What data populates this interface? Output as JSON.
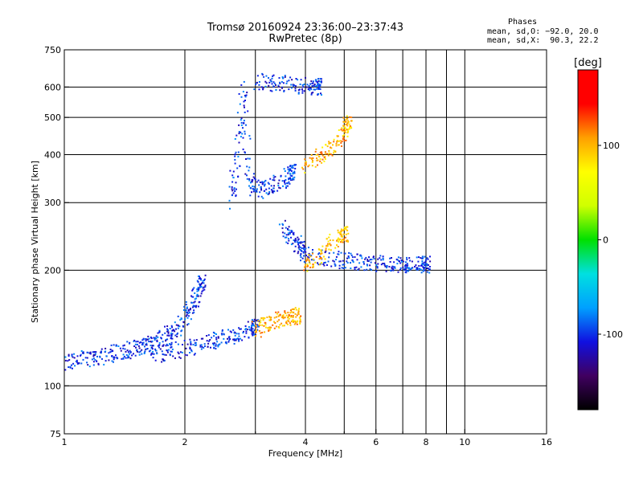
{
  "header": {
    "title": "Tromsø 20160924 23:36:00–23:37:43",
    "subtitle": "RwPretec (8p)",
    "stats_title": "Phases",
    "stats_o": "mean, sd,O: −92.0, 20.0",
    "stats_x": "mean, sd,X:  90.3, 22.2"
  },
  "chart_data": {
    "type": "scatter",
    "x_scale": "log",
    "y_scale": "log",
    "xlabel": "Frequency [MHz]",
    "ylabel": "Stationary phase Virtual Height [km]",
    "xlim": [
      1,
      16
    ],
    "ylim": [
      75,
      750
    ],
    "x_ticks": [
      1,
      2,
      4,
      6,
      8,
      10,
      16
    ],
    "x_gridlines": [
      2,
      3,
      4,
      5,
      6,
      7,
      8,
      9,
      10
    ],
    "y_ticks": [
      75,
      100,
      200,
      300,
      400,
      500,
      600,
      750
    ],
    "y_gridlines": [
      100,
      200,
      300,
      400,
      500,
      600
    ],
    "grid": true,
    "colorbar": {
      "label": "[deg]",
      "range": [
        -180,
        180
      ],
      "ticks": [
        -100,
        0,
        100
      ],
      "colors": [
        "#000000",
        "#400060",
        "#1010e0",
        "#00a0ff",
        "#00e0e0",
        "#00e000",
        "#d0ff00",
        "#ffff00",
        "#ffa000",
        "#ff0000",
        "#ff0000"
      ]
    },
    "series": [
      {
        "mode": "O",
        "phase_deg": -100,
        "traces": [
          {
            "x": [
              1.0,
              1.1,
              1.2,
              1.3,
              1.4,
              1.5,
              1.6,
              1.7,
              1.8,
              1.9,
              2.0,
              2.1,
              2.2
            ],
            "y": [
              115,
              117,
              118,
              121,
              123,
              125,
              127,
              130,
              135,
              140,
              150,
              165,
              185
            ]
          },
          {
            "x": [
              1.6,
              1.8,
              2.0,
              2.2,
              2.4,
              2.6,
              2.8,
              3.0
            ],
            "y": [
              120,
              122,
              125,
              128,
              132,
              135,
              138,
              142
            ]
          },
          {
            "x": [
              2.6,
              2.7,
              2.8,
              2.9,
              3.0,
              3.2,
              3.5,
              3.7
            ],
            "y": [
              300,
              380,
              600,
              350,
              320,
              330,
              340,
              360
            ]
          },
          {
            "x": [
              3.0,
              3.3,
              3.6,
              4.0,
              4.3
            ],
            "y": [
              620,
              615,
              610,
              605,
              600
            ]
          },
          {
            "x": [
              3.5,
              3.7,
              3.9,
              4.0,
              4.5,
              5.0,
              5.5,
              6.0,
              6.5,
              7.0,
              7.5,
              8.0
            ],
            "y": [
              260,
              245,
              230,
              220,
              215,
              212,
              210,
              208,
              207,
              206,
              206,
              207
            ]
          }
        ]
      },
      {
        "mode": "X",
        "phase_deg": 100,
        "traces": [
          {
            "x": [
              3.0,
              3.2,
              3.4,
              3.6,
              3.8
            ],
            "y": [
              140,
              145,
              148,
              150,
              152
            ]
          },
          {
            "x": [
              4.0,
              4.3,
              4.6,
              4.9,
              5.1
            ],
            "y": [
              370,
              390,
              410,
              440,
              480
            ]
          },
          {
            "x": [
              4.0,
              4.3,
              4.6,
              5.0
            ],
            "y": [
              205,
              215,
              235,
              248
            ]
          }
        ]
      }
    ]
  }
}
